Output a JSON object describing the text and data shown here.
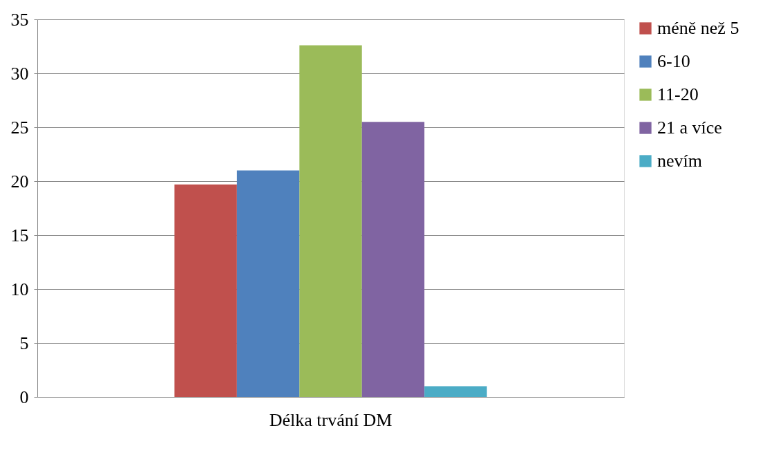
{
  "chart_data": {
    "type": "bar",
    "categories": [
      "Délka trvání DM"
    ],
    "series": [
      {
        "name": "méně než 5",
        "color": "#c0504d",
        "values": [
          19.7
        ]
      },
      {
        "name": "6-10",
        "color": "#4f81bd",
        "values": [
          21.0
        ]
      },
      {
        "name": "11-20",
        "color": "#9bbb59",
        "values": [
          32.6
        ]
      },
      {
        "name": "21 a více",
        "color": "#8064a2",
        "values": [
          25.5
        ]
      },
      {
        "name": "nevím",
        "color": "#4bacc6",
        "values": [
          1.0
        ]
      }
    ],
    "ylim": [
      0,
      35
    ],
    "yticks": [
      0,
      5,
      10,
      15,
      20,
      25,
      30,
      35
    ],
    "grid": "y",
    "legend": "right"
  }
}
